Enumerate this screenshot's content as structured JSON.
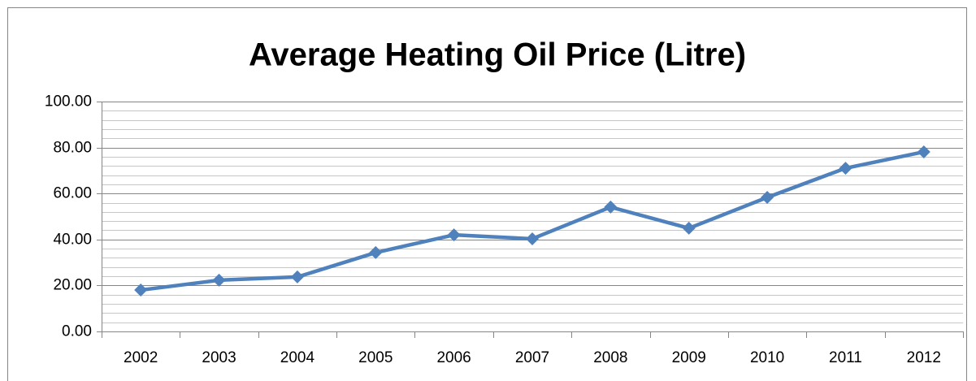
{
  "chart_data": {
    "type": "line",
    "title": "Average Heating Oil Price (Litre)",
    "categories": [
      "2002",
      "2003",
      "2004",
      "2005",
      "2006",
      "2007",
      "2008",
      "2009",
      "2010",
      "2011",
      "2012"
    ],
    "series": [
      {
        "name": "Average Heating Oil Price (Litre)",
        "color": "#4f81bd",
        "values": [
          18.0,
          22.3,
          23.7,
          34.3,
          42.0,
          40.3,
          54.1,
          44.9,
          58.3,
          71.0,
          78.1
        ]
      }
    ],
    "ylim": [
      0,
      100
    ],
    "yticks": [
      {
        "value": 0,
        "label": "0.00"
      },
      {
        "value": 20,
        "label": "20.00"
      },
      {
        "value": 40,
        "label": "40.00"
      },
      {
        "value": 60,
        "label": "60.00"
      },
      {
        "value": 80,
        "label": "80.00"
      },
      {
        "value": 100,
        "label": "100.00"
      }
    ],
    "minor_yticks": [
      4,
      8,
      12,
      16,
      24,
      28,
      32,
      36,
      44,
      48,
      52,
      56,
      64,
      68,
      72,
      76,
      84,
      88,
      92,
      96
    ],
    "grid": true,
    "legend": false
  }
}
